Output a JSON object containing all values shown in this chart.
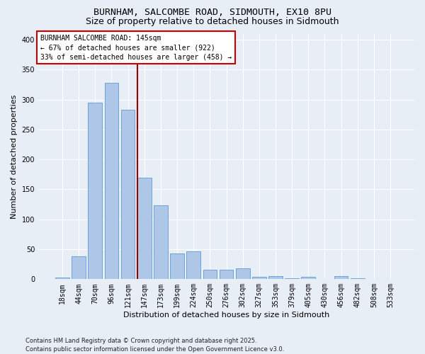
{
  "title1": "BURNHAM, SALCOMBE ROAD, SIDMOUTH, EX10 8PU",
  "title2": "Size of property relative to detached houses in Sidmouth",
  "xlabel": "Distribution of detached houses by size in Sidmouth",
  "ylabel": "Number of detached properties",
  "categories": [
    "18sqm",
    "44sqm",
    "70sqm",
    "96sqm",
    "121sqm",
    "147sqm",
    "173sqm",
    "199sqm",
    "224sqm",
    "250sqm",
    "276sqm",
    "302sqm",
    "327sqm",
    "353sqm",
    "379sqm",
    "405sqm",
    "430sqm",
    "456sqm",
    "482sqm",
    "508sqm",
    "533sqm"
  ],
  "values": [
    3,
    38,
    295,
    328,
    283,
    170,
    123,
    43,
    46,
    16,
    16,
    18,
    4,
    5,
    2,
    4,
    0,
    5,
    1,
    0,
    0
  ],
  "bar_color": "#aec6e8",
  "bar_edge_color": "#5b9bd5",
  "ref_line_index": 5,
  "ref_line_color": "#990000",
  "annotation_text": "BURNHAM SALCOMBE ROAD: 145sqm\n← 67% of detached houses are smaller (922)\n33% of semi-detached houses are larger (458) →",
  "annotation_box_color": "#ffffff",
  "annotation_box_edge": "#cc0000",
  "bg_color": "#e8eef5",
  "plot_bg_color": "#e8eef5",
  "grid_color": "#ffffff",
  "footer": "Contains HM Land Registry data © Crown copyright and database right 2025.\nContains public sector information licensed under the Open Government Licence v3.0.",
  "ylim": [
    0,
    410
  ],
  "title1_fontsize": 9.5,
  "title2_fontsize": 9,
  "axis_label_fontsize": 8,
  "tick_fontsize": 7,
  "annot_fontsize": 7,
  "footer_fontsize": 6
}
